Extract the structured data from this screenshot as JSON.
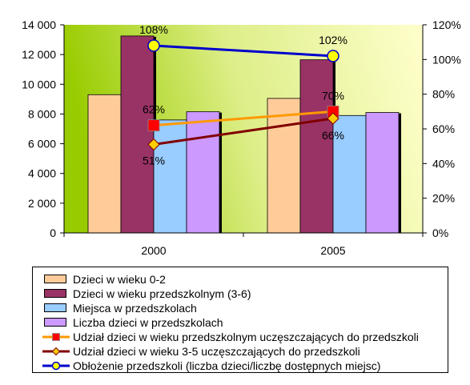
{
  "chart_data": {
    "type": "bar",
    "categories": [
      "2000",
      "2005"
    ],
    "bar_series": [
      {
        "name": "Dzieci w wieku 0-2",
        "values": [
          9300,
          9050
        ],
        "color": "#FFCC99"
      },
      {
        "name": "Dzieci w wieku przedszkolnym (3-6)",
        "values": [
          13250,
          11650
        ],
        "color": "#993366"
      },
      {
        "name": "Miejsca w przedszkolach",
        "values": [
          7600,
          7900
        ],
        "color": "#99CCFF"
      },
      {
        "name": "Liczba dzieci w przedszkolach",
        "values": [
          8150,
          8100
        ],
        "color": "#CC99FF"
      }
    ],
    "line_series": [
      {
        "name": "Udział dzieci w wieku przedszkolnym uczęszczających do przedszkoli",
        "values": [
          62,
          70
        ],
        "labels": [
          "62%",
          "70%"
        ],
        "color": "#FF9900",
        "marker": "square",
        "marker_color": "#FF0000"
      },
      {
        "name": "Udział dzieci w wieku 3-5 uczęszczających do przedszkoli",
        "values": [
          51,
          66
        ],
        "labels": [
          "51%",
          "66%"
        ],
        "color": "#800000",
        "marker": "diamond",
        "marker_color": "#FFCC00"
      },
      {
        "name": "Obłożenie przedszkoli (liczba dzieci/liczbę dostępnych miejsc)",
        "values": [
          108,
          102
        ],
        "labels": [
          "108%",
          "102%"
        ],
        "color": "#0000CC",
        "marker": "circle",
        "marker_color": "#FFFF00"
      }
    ],
    "y_left": {
      "lim": [
        0,
        14000
      ],
      "ticks": [
        "0",
        "2 000",
        "4 000",
        "6 000",
        "8 000",
        "10 000",
        "12 000",
        "14 000"
      ]
    },
    "y_right": {
      "lim": [
        0,
        120
      ],
      "ticks": [
        "0%",
        "20%",
        "40%",
        "60%",
        "80%",
        "100%",
        "120%"
      ]
    },
    "legend_position": "bottom",
    "background_gradient": [
      "#99CC00",
      "#FFFFCC"
    ]
  }
}
